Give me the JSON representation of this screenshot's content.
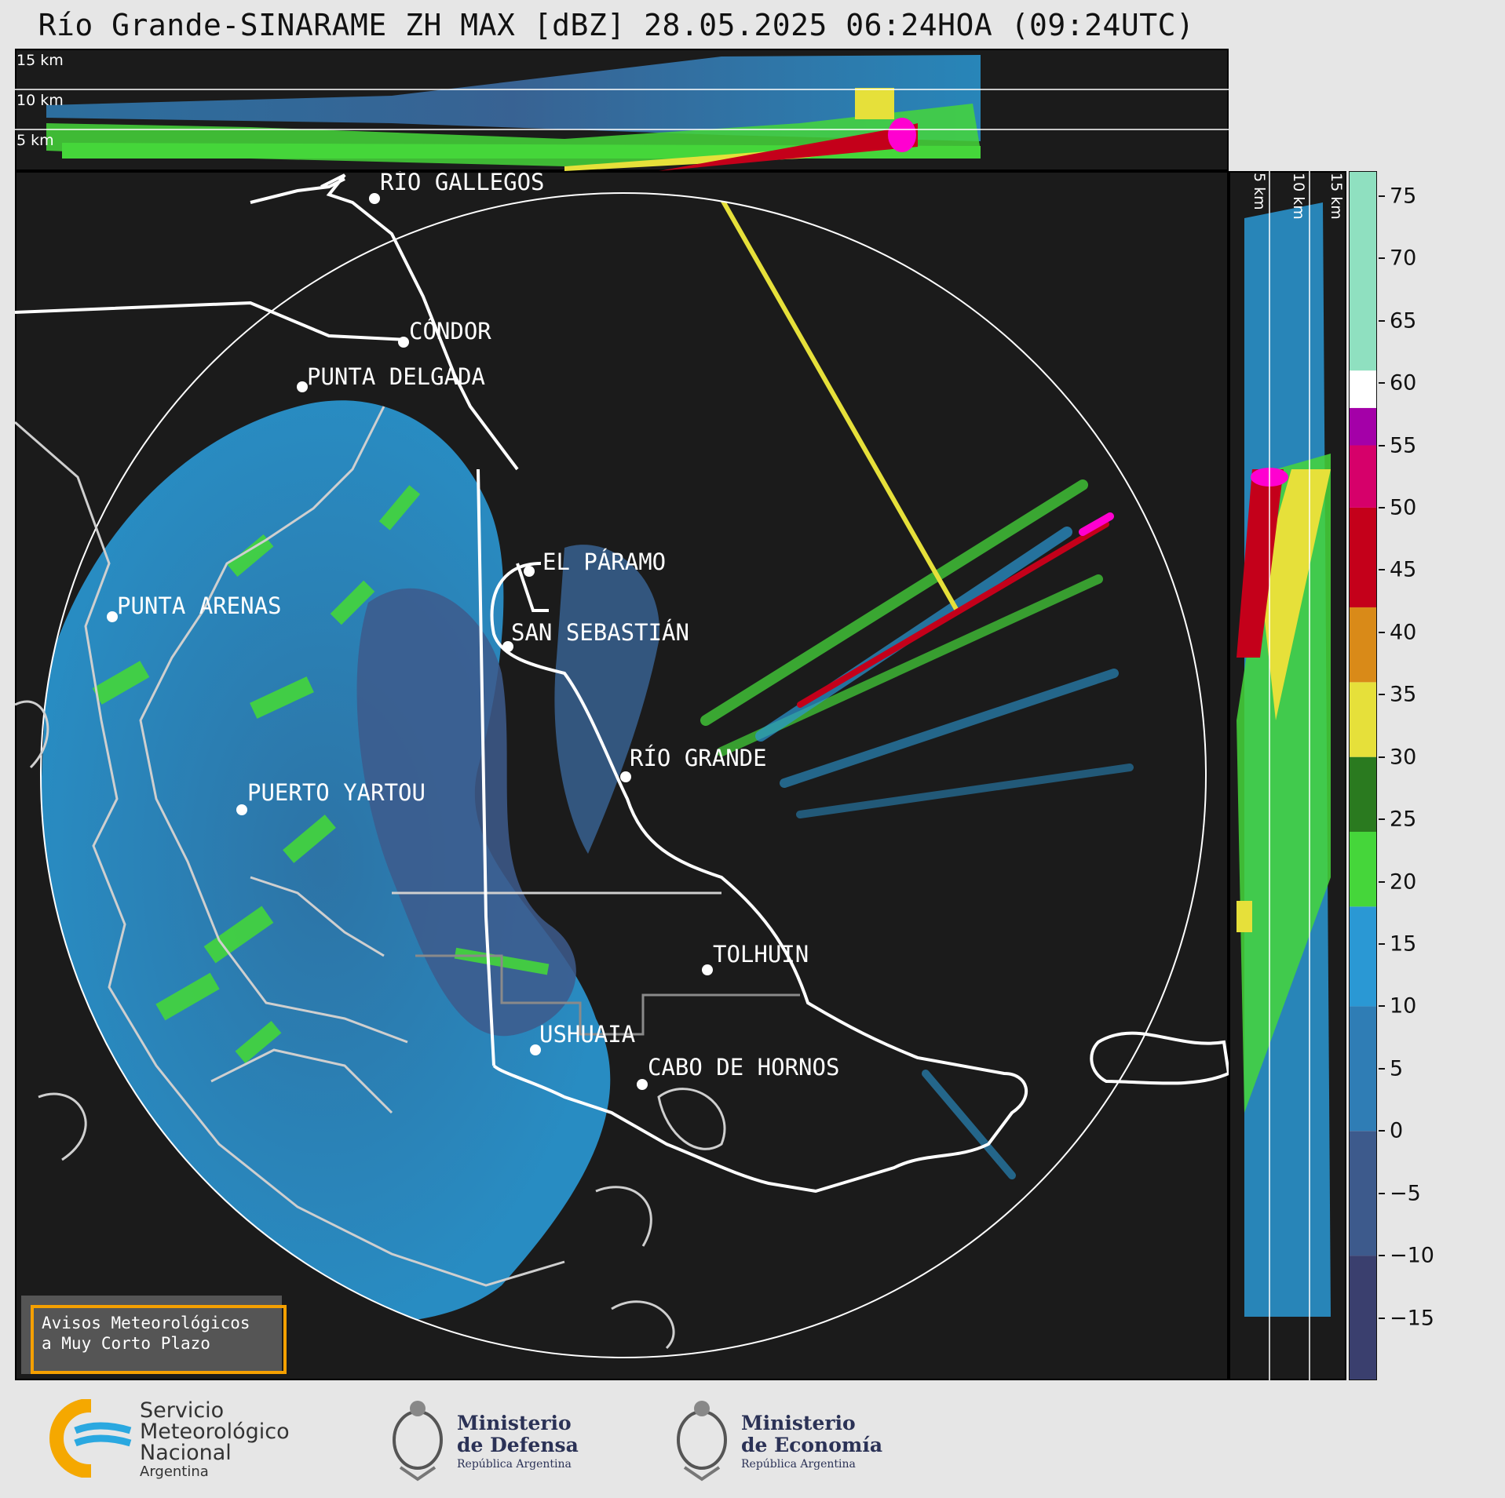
{
  "title": "Río Grande-SINARAME ZH MAX [dBZ] 28.05.2025 06:24HOA (09:24UTC)",
  "top_panel": {
    "height_labels": [
      "15 km",
      "10 km",
      "5 km"
    ]
  },
  "side_panel": {
    "height_labels": [
      "5 km",
      "10 km",
      "15 km"
    ]
  },
  "cities": [
    {
      "id": "rio-gallegos",
      "name": "RÍO GALLEGOS"
    },
    {
      "id": "condor",
      "name": "CÓNDOR"
    },
    {
      "id": "punta-delgada",
      "name": "PUNTA DELGADA"
    },
    {
      "id": "el-paramo",
      "name": "EL PÁRAMO"
    },
    {
      "id": "punta-arenas",
      "name": "PUNTA ARENAS"
    },
    {
      "id": "san-sebastian",
      "name": "SAN SEBASTIÁN"
    },
    {
      "id": "rio-grande",
      "name": "RÍO GRANDE"
    },
    {
      "id": "puerto-yartou",
      "name": "PUERTO YARTOU"
    },
    {
      "id": "tolhuin",
      "name": "TOLHUIN"
    },
    {
      "id": "ushuaia",
      "name": "USHUAIA"
    },
    {
      "id": "cabo-de-hornos",
      "name": "CABO DE HORNOS"
    }
  ],
  "warning_box": {
    "line1": "Avisos Meteorológicos",
    "line2": "a Muy Corto Plazo"
  },
  "colorbar": {
    "unit": "dBZ",
    "min": -20,
    "max": 77,
    "ticks": [
      75,
      70,
      65,
      60,
      55,
      50,
      45,
      40,
      35,
      30,
      25,
      20,
      15,
      10,
      5,
      0,
      -5,
      -10,
      -15
    ],
    "tick_labels": [
      "75",
      "70",
      "65",
      "60",
      "55",
      "50",
      "45",
      "40",
      "35",
      "30",
      "25",
      "20",
      "15",
      "10",
      "5",
      "0",
      "−5",
      "−10",
      "−15"
    ],
    "bands": [
      {
        "from": -20,
        "to": -10,
        "color": "#3a3f6e"
      },
      {
        "from": -10,
        "to": 0,
        "color": "#3d5a8c"
      },
      {
        "from": 0,
        "to": 10,
        "color": "#2f7db5"
      },
      {
        "from": 10,
        "to": 18,
        "color": "#2a98d4"
      },
      {
        "from": 18,
        "to": 24,
        "color": "#45d63a"
      },
      {
        "from": 24,
        "to": 30,
        "color": "#2a7a1f"
      },
      {
        "from": 30,
        "to": 36,
        "color": "#e6e03a"
      },
      {
        "from": 36,
        "to": 42,
        "color": "#d98a18"
      },
      {
        "from": 42,
        "to": 50,
        "color": "#c4001a"
      },
      {
        "from": 50,
        "to": 55,
        "color": "#d6006a"
      },
      {
        "from": 55,
        "to": 58,
        "color": "#a400a8"
      },
      {
        "from": 58,
        "to": 61,
        "color": "#ffffff"
      },
      {
        "from": 61,
        "to": 77,
        "color": "#8fe0c0"
      }
    ]
  },
  "logos": {
    "smn": {
      "line1": "Servicio",
      "line2": "Meteorológico",
      "line3": "Nacional",
      "line4": "Argentina"
    },
    "defensa": {
      "line1": "Ministerio",
      "line2": "de Defensa",
      "line3": "República Argentina"
    },
    "economia": {
      "line1": "Ministerio",
      "line2": "de Economía",
      "line3": "República Argentina"
    }
  },
  "colors": {
    "panel_bg": "#1b1b1b",
    "accent_orange": "#f5a000",
    "map_outline": "#ffffff"
  }
}
